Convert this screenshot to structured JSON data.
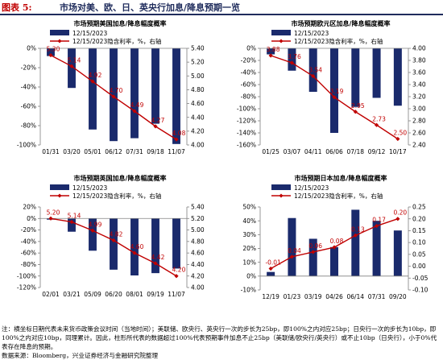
{
  "header": {
    "label": "图表 5:",
    "title": "市场对美、欧、日、英央行加息/降息预期一览"
  },
  "legend_bar": "12/15/2023",
  "legend_line": "12/15/2023隐含利率，%，右轴",
  "chart_data": [
    {
      "type": "bar",
      "title": "市场预期美国加息/降息幅度概率",
      "categories": [
        "01/31",
        "03/20",
        "05/01",
        "06/12",
        "07/31",
        "09/18",
        "11/07"
      ],
      "series": [
        {
          "name": "12/15/2023",
          "type": "bar",
          "axis": "left",
          "values": [
            -8,
            -41,
            -84,
            -96,
            -93,
            -78,
            -99
          ]
        },
        {
          "name": "12/15/2023隐含利率，%，右轴",
          "type": "line",
          "axis": "right",
          "values": [
            5.3,
            5.14,
            4.92,
            4.7,
            4.49,
            4.27,
            4.08
          ]
        }
      ],
      "y_left": {
        "min": -100,
        "max": 0,
        "step": 20,
        "format": "percent"
      },
      "y_right": {
        "min": 4.0,
        "max": 5.4,
        "step": 0.2,
        "decimals": 2
      },
      "data_labels": [
        "5.30",
        "5.14",
        "4.92",
        "4.70",
        "4.49",
        "4.27",
        "4.08"
      ]
    },
    {
      "type": "bar",
      "title": "市场预期欧元区加息/降息幅度概率",
      "categories": [
        "01/25",
        "03/07",
        "04/11",
        "06/06",
        "07/18",
        "09/12",
        "10/17"
      ],
      "series": [
        {
          "name": "12/15/2023",
          "type": "bar",
          "axis": "left",
          "values": [
            -10,
            -37,
            -72,
            -140,
            -97,
            -82,
            -95
          ]
        },
        {
          "name": "12/15/2023隐含利率，%，右轴",
          "type": "line",
          "axis": "right",
          "values": [
            3.88,
            3.76,
            3.54,
            3.19,
            2.95,
            2.73,
            2.5
          ]
        }
      ],
      "y_left": {
        "min": -160,
        "max": 0,
        "step": 20,
        "format": "percent"
      },
      "y_right": {
        "min": 2.4,
        "max": 4.0,
        "step": 0.2,
        "decimals": 2
      },
      "data_labels": [
        "3.88",
        "3.76",
        "3.54",
        "3.19",
        "2.95",
        "2.73",
        "2.50"
      ]
    },
    {
      "type": "bar",
      "title": "市场预期英国加息/降息幅度概率",
      "categories": [
        "02/01",
        "03/21",
        "05/09",
        "06/20",
        "08/01",
        "09/19",
        "11/07"
      ],
      "series": [
        {
          "name": "12/15/2023",
          "type": "bar",
          "axis": "left",
          "values": [
            -2,
            -23,
            -56,
            -89,
            -99,
            -95,
            -87
          ]
        },
        {
          "name": "12/15/2023隐含利率，%，右轴",
          "type": "line",
          "axis": "right",
          "values": [
            5.2,
            5.14,
            4.99,
            4.82,
            4.6,
            4.42,
            4.2
          ]
        }
      ],
      "y_left": {
        "min": -120,
        "max": 20,
        "step": 20,
        "format": "percent"
      },
      "y_right": {
        "min": 4.0,
        "max": 5.4,
        "step": 0.2,
        "decimals": 2
      },
      "data_labels": [
        "5.20",
        "5.14",
        "4.99",
        "4.82",
        "4.60",
        "4.42",
        "4.20"
      ]
    },
    {
      "type": "bar",
      "title": "市场预期日本加息/降息幅度概率",
      "categories": [
        "12/19",
        "01/23",
        "03/19",
        "04/26",
        "06/14",
        "07/31",
        "09/20"
      ],
      "series": [
        {
          "name": "12/15/2023",
          "type": "bar",
          "axis": "left",
          "values": [
            3,
            42,
            27,
            21,
            48,
            40,
            33
          ]
        },
        {
          "name": "12/15/2023隐含利率，%，右轴",
          "type": "line",
          "axis": "right",
          "values": [
            -0.01,
            0.04,
            0.06,
            0.08,
            0.13,
            0.17,
            0.2
          ]
        }
      ],
      "y_left": {
        "min": -10,
        "max": 50,
        "step": 10,
        "format": "percent"
      },
      "y_right": {
        "min": -0.1,
        "max": 0.25,
        "step": 0.05,
        "decimals": 2
      },
      "data_labels": [
        "-0.01",
        "0.04",
        "0.06",
        "0.08",
        "0.13",
        "0.17",
        "0.20"
      ]
    }
  ],
  "colors": {
    "bar": "#1a2a6c",
    "line": "#c00000",
    "header": "#1f2c5c",
    "label_red": "#c00000"
  },
  "notes": {
    "text": "注：横坐标日期代表未来货币政策会议时间（当地时间）；美联储、欧央行、英央行一次的步长为25bp，即100%之内对应25bp；日央行一次的步长为10bp，即100%之内对应10bp，同理累计。因此，柱形所代表的数据超过100%代表预期事件加息不止25bp（美联储/欧央行/英央行）或不止10bp（日央行），小于0%代表存在降息的预期。",
    "source": "数据来源：Bloomberg，兴业证券经济与金融研究院整理"
  }
}
